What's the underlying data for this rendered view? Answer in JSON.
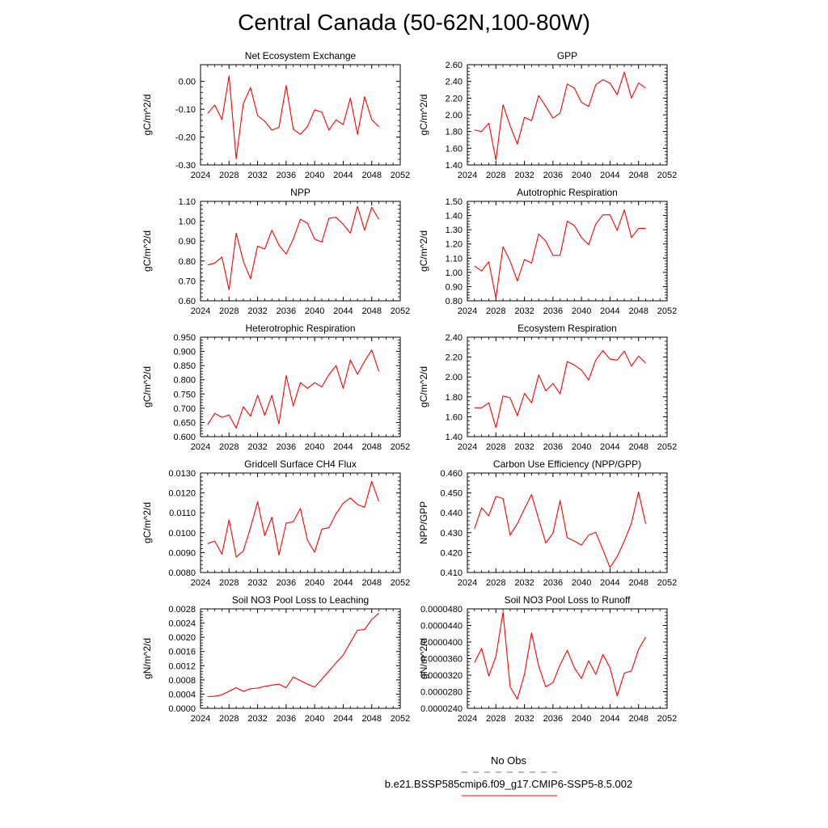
{
  "figure": {
    "title": "Central Canada (50-62N,100-80W)"
  },
  "legend": {
    "obs_label": "No Obs",
    "model_label": "b.e21.BSSP585cmip6.f09_g17.CMIP6-SSP5-8.5.002",
    "obs_color": "#6a6ad8",
    "model_color": "#ff0000"
  },
  "chart_data": [
    {
      "type": "line",
      "title": "Net Ecosystem Exchange",
      "xlabel": "",
      "ylabel": "gC/m^2/d",
      "xlim": [
        2024,
        2052
      ],
      "ylim": [
        -0.3,
        0.06
      ],
      "xticks": [
        "2024",
        "2028",
        "2032",
        "2036",
        "2040",
        "2044",
        "2048",
        "2052"
      ],
      "yticks": [
        "-0.30",
        "-0.20",
        "-0.10",
        "0.00"
      ],
      "ytick_values": [
        -0.3,
        -0.2,
        -0.1,
        0.0
      ],
      "series": [
        {
          "color": "#ff0000",
          "x": [
            2025,
            2026,
            2027,
            2028,
            2029,
            2030,
            2031,
            2032,
            2033,
            2034,
            2035,
            2036,
            2037,
            2038,
            2039,
            2040,
            2041,
            2042,
            2043,
            2044,
            2045,
            2046,
            2047,
            2048,
            2049
          ],
          "values": [
            -0.115,
            -0.085,
            -0.137,
            0.02,
            -0.278,
            -0.08,
            -0.022,
            -0.123,
            -0.143,
            -0.175,
            -0.165,
            -0.015,
            -0.172,
            -0.19,
            -0.162,
            -0.102,
            -0.11,
            -0.175,
            -0.138,
            -0.155,
            -0.06,
            -0.19,
            -0.055,
            -0.137,
            -0.163
          ]
        }
      ]
    },
    {
      "type": "line",
      "title": "GPP",
      "xlabel": "",
      "ylabel": "gC/m^2/d",
      "xlim": [
        2024,
        2052
      ],
      "ylim": [
        1.4,
        2.6
      ],
      "xticks": [
        "2024",
        "2028",
        "2032",
        "2036",
        "2040",
        "2044",
        "2048",
        "2052"
      ],
      "yticks": [
        "1.40",
        "1.60",
        "1.80",
        "2.00",
        "2.20",
        "2.40",
        "2.60"
      ],
      "ytick_values": [
        1.4,
        1.6,
        1.8,
        2.0,
        2.2,
        2.4,
        2.6
      ],
      "series": [
        {
          "color": "#ff0000",
          "x": [
            2025,
            2026,
            2027,
            2028,
            2029,
            2030,
            2031,
            2032,
            2033,
            2034,
            2035,
            2036,
            2037,
            2038,
            2039,
            2040,
            2041,
            2042,
            2043,
            2044,
            2045,
            2046,
            2047,
            2048,
            2049
          ],
          "values": [
            1.82,
            1.8,
            1.9,
            1.46,
            2.12,
            1.87,
            1.65,
            1.97,
            1.93,
            2.23,
            2.1,
            1.96,
            2.02,
            2.37,
            2.32,
            2.15,
            2.1,
            2.36,
            2.42,
            2.38,
            2.24,
            2.51,
            2.2,
            2.38,
            2.32
          ]
        }
      ]
    },
    {
      "type": "line",
      "title": "NPP",
      "xlabel": "",
      "ylabel": "gC/m^2/d",
      "xlim": [
        2024,
        2052
      ],
      "ylim": [
        0.6,
        1.1
      ],
      "xticks": [
        "2024",
        "2028",
        "2032",
        "2036",
        "2040",
        "2044",
        "2048",
        "2052"
      ],
      "yticks": [
        "0.60",
        "0.70",
        "0.80",
        "0.90",
        "1.00",
        "1.10"
      ],
      "ytick_values": [
        0.6,
        0.7,
        0.8,
        0.9,
        1.0,
        1.1
      ],
      "series": [
        {
          "color": "#ff0000",
          "x": [
            2025,
            2026,
            2027,
            2028,
            2029,
            2030,
            2031,
            2032,
            2033,
            2034,
            2035,
            2036,
            2037,
            2038,
            2039,
            2040,
            2041,
            2042,
            2043,
            2044,
            2045,
            2046,
            2047,
            2048,
            2049
          ],
          "values": [
            0.78,
            0.79,
            0.82,
            0.655,
            0.94,
            0.8,
            0.71,
            0.875,
            0.86,
            0.955,
            0.88,
            0.835,
            0.91,
            1.01,
            0.99,
            0.91,
            0.895,
            1.015,
            1.02,
            0.985,
            0.94,
            1.075,
            0.955,
            1.07,
            1.01
          ]
        }
      ]
    },
    {
      "type": "line",
      "title": "Autotrophic Respiration",
      "xlabel": "",
      "ylabel": "gC/m^2/d",
      "xlim": [
        2024,
        2052
      ],
      "ylim": [
        0.8,
        1.5
      ],
      "xticks": [
        "2024",
        "2028",
        "2032",
        "2036",
        "2040",
        "2044",
        "2048",
        "2052"
      ],
      "yticks": [
        "0.80",
        "0.90",
        "1.00",
        "1.10",
        "1.20",
        "1.30",
        "1.40",
        "1.50"
      ],
      "ytick_values": [
        0.8,
        0.9,
        1.0,
        1.1,
        1.2,
        1.3,
        1.4,
        1.5
      ],
      "series": [
        {
          "color": "#ff0000",
          "x": [
            2025,
            2026,
            2027,
            2028,
            2029,
            2030,
            2031,
            2032,
            2033,
            2034,
            2035,
            2036,
            2037,
            2038,
            2039,
            2040,
            2041,
            2042,
            2043,
            2044,
            2045,
            2046,
            2047,
            2048,
            2049
          ],
          "values": [
            1.045,
            1.01,
            1.075,
            0.82,
            1.18,
            1.08,
            0.94,
            1.09,
            1.065,
            1.27,
            1.22,
            1.12,
            1.12,
            1.36,
            1.33,
            1.245,
            1.195,
            1.34,
            1.405,
            1.405,
            1.295,
            1.44,
            1.245,
            1.31,
            1.31
          ]
        }
      ]
    },
    {
      "type": "line",
      "title": "Heterotrophic Respiration",
      "xlabel": "",
      "ylabel": "gC/m^2/d",
      "xlim": [
        2024,
        2052
      ],
      "ylim": [
        0.6,
        0.95
      ],
      "xticks": [
        "2024",
        "2028",
        "2032",
        "2036",
        "2040",
        "2044",
        "2048",
        "2052"
      ],
      "yticks": [
        "0.600",
        "0.650",
        "0.700",
        "0.750",
        "0.800",
        "0.850",
        "0.900",
        "0.950"
      ],
      "ytick_values": [
        0.6,
        0.65,
        0.7,
        0.75,
        0.8,
        0.85,
        0.9,
        0.95
      ],
      "series": [
        {
          "color": "#ff0000",
          "x": [
            2025,
            2026,
            2027,
            2028,
            2029,
            2030,
            2031,
            2032,
            2033,
            2034,
            2035,
            2036,
            2037,
            2038,
            2039,
            2040,
            2041,
            2042,
            2043,
            2044,
            2045,
            2046,
            2047,
            2048,
            2049
          ],
          "values": [
            0.642,
            0.682,
            0.668,
            0.676,
            0.63,
            0.705,
            0.672,
            0.745,
            0.675,
            0.745,
            0.645,
            0.815,
            0.708,
            0.79,
            0.77,
            0.79,
            0.775,
            0.818,
            0.85,
            0.77,
            0.87,
            0.82,
            0.865,
            0.905,
            0.83
          ]
        }
      ]
    },
    {
      "type": "line",
      "title": "Ecosystem Respiration",
      "xlabel": "",
      "ylabel": "gC/m^2/d",
      "xlim": [
        2024,
        2052
      ],
      "ylim": [
        1.4,
        2.4
      ],
      "xticks": [
        "2024",
        "2028",
        "2032",
        "2036",
        "2040",
        "2044",
        "2048",
        "2052"
      ],
      "yticks": [
        "1.40",
        "1.60",
        "1.80",
        "2.00",
        "2.20",
        "2.40"
      ],
      "ytick_values": [
        1.4,
        1.6,
        1.8,
        2.0,
        2.2,
        2.4
      ],
      "series": [
        {
          "color": "#ff0000",
          "x": [
            2025,
            2026,
            2027,
            2028,
            2029,
            2030,
            2031,
            2032,
            2033,
            2034,
            2035,
            2036,
            2037,
            2038,
            2039,
            2040,
            2041,
            2042,
            2043,
            2044,
            2045,
            2046,
            2047,
            2048,
            2049
          ],
          "values": [
            1.69,
            1.69,
            1.74,
            1.49,
            1.81,
            1.79,
            1.61,
            1.835,
            1.74,
            2.02,
            1.86,
            1.935,
            1.83,
            2.155,
            2.12,
            2.07,
            1.97,
            2.17,
            2.265,
            2.18,
            2.17,
            2.26,
            2.11,
            2.21,
            2.14
          ]
        }
      ]
    },
    {
      "type": "line",
      "title": "Gridcell Surface CH4 Flux",
      "xlabel": "",
      "ylabel": "gC/m^2/d",
      "xlim": [
        2024,
        2052
      ],
      "ylim": [
        0.008,
        0.013
      ],
      "xticks": [
        "2024",
        "2028",
        "2032",
        "2036",
        "2040",
        "2044",
        "2048",
        "2052"
      ],
      "yticks": [
        "0.0080",
        "0.0090",
        "0.0100",
        "0.0110",
        "0.0120",
        "0.0130"
      ],
      "ytick_values": [
        0.008,
        0.009,
        0.01,
        0.011,
        0.012,
        0.013
      ],
      "series": [
        {
          "color": "#ff0000",
          "x": [
            2025,
            2026,
            2027,
            2028,
            2029,
            2030,
            2031,
            2032,
            2033,
            2034,
            2035,
            2036,
            2037,
            2038,
            2039,
            2040,
            2041,
            2042,
            2043,
            2044,
            2045,
            2046,
            2047,
            2048,
            2049
          ],
          "values": [
            0.00945,
            0.00958,
            0.00892,
            0.01065,
            0.00878,
            0.00908,
            0.01025,
            0.01155,
            0.00985,
            0.01078,
            0.00888,
            0.01048,
            0.01055,
            0.01122,
            0.00962,
            0.00902,
            0.01018,
            0.01025,
            0.01095,
            0.01148,
            0.01175,
            0.01142,
            0.01128,
            0.01258,
            0.01158
          ]
        }
      ]
    },
    {
      "type": "line",
      "title": "Carbon Use Efficiency (NPP/GPP)",
      "xlabel": "",
      "ylabel": "NPP/GPP",
      "xlim": [
        2024,
        2052
      ],
      "ylim": [
        0.41,
        0.46
      ],
      "xticks": [
        "2024",
        "2028",
        "2032",
        "2036",
        "2040",
        "2044",
        "2048",
        "2052"
      ],
      "yticks": [
        "0.410",
        "0.420",
        "0.430",
        "0.440",
        "0.450",
        "0.460"
      ],
      "ytick_values": [
        0.41,
        0.42,
        0.43,
        0.44,
        0.45,
        0.46
      ],
      "series": [
        {
          "color": "#ff0000",
          "x": [
            2025,
            2026,
            2027,
            2028,
            2029,
            2030,
            2031,
            2032,
            2033,
            2034,
            2035,
            2036,
            2037,
            2038,
            2039,
            2040,
            2041,
            2042,
            2043,
            2044,
            2045,
            2046,
            2047,
            2048,
            2049
          ],
          "values": [
            0.432,
            0.4425,
            0.4385,
            0.4482,
            0.4472,
            0.4288,
            0.4345,
            0.442,
            0.4492,
            0.4368,
            0.4248,
            0.4298,
            0.4462,
            0.4275,
            0.4258,
            0.4238,
            0.4288,
            0.4302,
            0.4215,
            0.4125,
            0.418,
            0.4258,
            0.4348,
            0.4505,
            0.4345
          ]
        }
      ]
    },
    {
      "type": "line",
      "title": "Soil NO3 Pool Loss to Leaching",
      "xlabel": "",
      "ylabel": "gN/m^2/d",
      "xlim": [
        2024,
        2052
      ],
      "ylim": [
        0.0,
        0.0028
      ],
      "xticks": [
        "2024",
        "2028",
        "2032",
        "2036",
        "2040",
        "2044",
        "2048",
        "2052"
      ],
      "yticks": [
        "0.0000",
        "0.0004",
        "0.0008",
        "0.0012",
        "0.0016",
        "0.0020",
        "0.0024",
        "0.0028"
      ],
      "ytick_values": [
        0.0,
        0.0004,
        0.0008,
        0.0012,
        0.0016,
        0.002,
        0.0024,
        0.0028
      ],
      "series": [
        {
          "color": "#ff0000",
          "x": [
            2025,
            2026,
            2027,
            2028,
            2029,
            2030,
            2031,
            2032,
            2033,
            2034,
            2035,
            2036,
            2037,
            2038,
            2039,
            2040,
            2041,
            2042,
            2043,
            2044,
            2045,
            2046,
            2047,
            2048,
            2049
          ],
          "values": [
            0.00033,
            0.00034,
            0.00038,
            0.00048,
            0.00058,
            0.00048,
            0.00055,
            0.00057,
            0.00062,
            0.00065,
            0.00068,
            0.00058,
            0.00088,
            0.00078,
            0.00068,
            0.0006,
            0.00082,
            0.00105,
            0.00128,
            0.0015,
            0.00185,
            0.0022,
            0.00222,
            0.0025,
            0.00268
          ]
        }
      ]
    },
    {
      "type": "line",
      "title": "Soil NO3 Pool Loss to Runoff",
      "xlabel": "",
      "ylabel": "gN/m^2/d",
      "xlim": [
        2024,
        2052
      ],
      "ylim": [
        2.4e-05,
        4.8e-05
      ],
      "xticks": [
        "2024",
        "2028",
        "2032",
        "2036",
        "2040",
        "2044",
        "2048",
        "2052"
      ],
      "yticks": [
        "0.0000240",
        "0.0000280",
        "0.0000320",
        "0.0000360",
        "0.0000400",
        "0.0000440",
        "0.0000480"
      ],
      "ytick_values": [
        2.4e-05,
        2.8e-05,
        3.2e-05,
        3.6e-05,
        4e-05,
        4.4e-05,
        4.8e-05
      ],
      "series": [
        {
          "color": "#ff0000",
          "x": [
            2025,
            2026,
            2027,
            2028,
            2029,
            2030,
            2031,
            2032,
            2033,
            2034,
            2035,
            2036,
            2037,
            2038,
            2039,
            2040,
            2041,
            2042,
            2043,
            2044,
            2045,
            2046,
            2047,
            2048,
            2049
          ],
          "values": [
            3.5e-05,
            3.85e-05,
            3.18e-05,
            3.65e-05,
            4.72e-05,
            2.92e-05,
            2.62e-05,
            3.22e-05,
            4.22e-05,
            3.42e-05,
            2.92e-05,
            3.02e-05,
            3.45e-05,
            3.8e-05,
            3.38e-05,
            3.12e-05,
            3.55e-05,
            3.22e-05,
            3.7e-05,
            3.38e-05,
            2.7e-05,
            3.25e-05,
            3.3e-05,
            3.82e-05,
            4.12e-05
          ]
        }
      ]
    }
  ]
}
